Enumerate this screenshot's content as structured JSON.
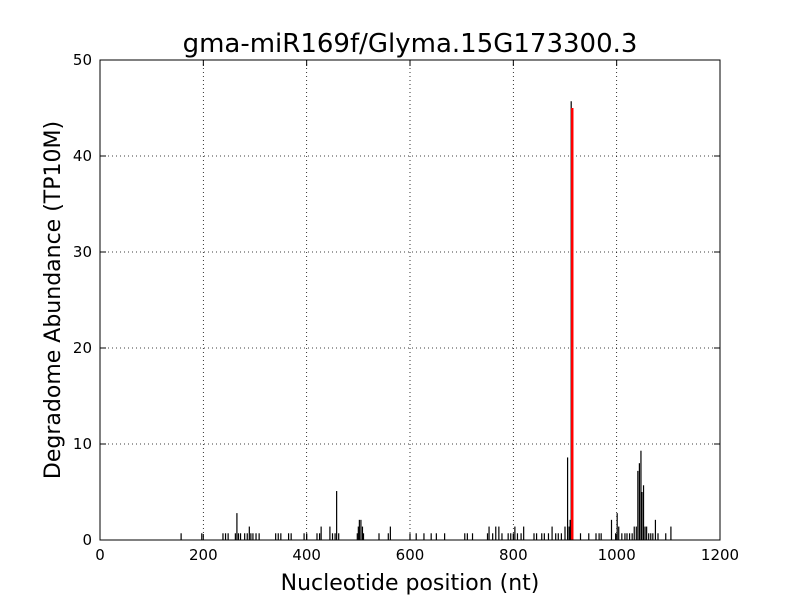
{
  "chart_data": {
    "type": "bar",
    "title": "gma-miR169f/Glyma.15G173300.3",
    "xlabel": "Nucleotide position (nt)",
    "ylabel": "Degradome Abundance (TP10M)",
    "xlim": [
      0,
      1200
    ],
    "ylim": [
      0,
      50
    ],
    "xticks": [
      "0",
      "200",
      "400",
      "600",
      "800",
      "1000",
      "1200"
    ],
    "yticks": [
      "0",
      "10",
      "20",
      "30",
      "40",
      "50"
    ],
    "grid": true,
    "colors": {
      "background": "#bcbcbc",
      "bars": "#000000",
      "highlight": "#ff0000",
      "plot_bg": "#ffffff"
    },
    "series": [
      {
        "x": [
          157,
          197,
          238,
          243,
          248,
          262,
          265,
          268,
          272,
          280,
          285,
          289,
          292,
          296,
          302,
          308,
          340,
          345,
          350,
          365,
          370,
          395,
          400,
          420,
          425,
          428,
          445,
          450,
          455,
          458,
          462,
          498,
          500,
          502,
          505,
          508,
          510,
          540,
          558,
          562,
          600,
          612,
          627,
          641,
          651,
          667,
          706,
          711,
          721,
          750,
          753,
          760,
          766,
          772,
          778,
          790,
          795,
          800,
          803,
          808,
          815,
          820,
          840,
          845,
          855,
          860,
          868,
          875,
          882,
          887,
          893,
          900,
          905,
          908,
          910,
          912,
          930,
          946,
          960,
          966,
          970,
          990,
          998,
          1001,
          1004,
          1010,
          1016,
          1020,
          1025,
          1030,
          1034,
          1038,
          1041,
          1044,
          1047,
          1049,
          1052,
          1055,
          1058,
          1062,
          1066,
          1070,
          1075,
          1080,
          1095,
          1105
        ],
        "values": [
          0.7,
          0.7,
          0.7,
          0.7,
          0.7,
          0.7,
          2.8,
          0.7,
          0.7,
          0.7,
          0.7,
          1.4,
          0.7,
          0.7,
          0.7,
          0.7,
          0.7,
          0.7,
          0.7,
          0.7,
          0.7,
          0.7,
          0.7,
          0.7,
          0.7,
          1.4,
          1.4,
          0.7,
          0.7,
          5.1,
          0.7,
          0.7,
          1.4,
          2.1,
          2.1,
          1.4,
          0.7,
          0.7,
          0.7,
          1.4,
          0.7,
          0.7,
          0.7,
          0.7,
          0.7,
          0.7,
          0.7,
          0.7,
          0.7,
          0.7,
          1.4,
          0.7,
          1.4,
          1.4,
          0.7,
          0.7,
          0.7,
          0.7,
          1.4,
          0.7,
          0.7,
          1.4,
          0.7,
          0.7,
          0.7,
          0.7,
          0.7,
          1.4,
          0.7,
          0.7,
          0.7,
          1.4,
          8.6,
          1.4,
          2.1,
          45.7,
          0.7,
          0.7,
          0.7,
          0.7,
          0.7,
          2.1,
          0.7,
          2.8,
          1.4,
          0.7,
          0.7,
          0.7,
          0.7,
          0.7,
          1.4,
          1.4,
          7.2,
          8.0,
          9.3,
          5.0,
          5.7,
          1.4,
          1.4,
          0.7,
          0.7,
          0.7,
          2.1,
          0.7,
          0.7,
          1.4
        ]
      }
    ],
    "highlight": {
      "x": 914,
      "value": 45
    }
  }
}
